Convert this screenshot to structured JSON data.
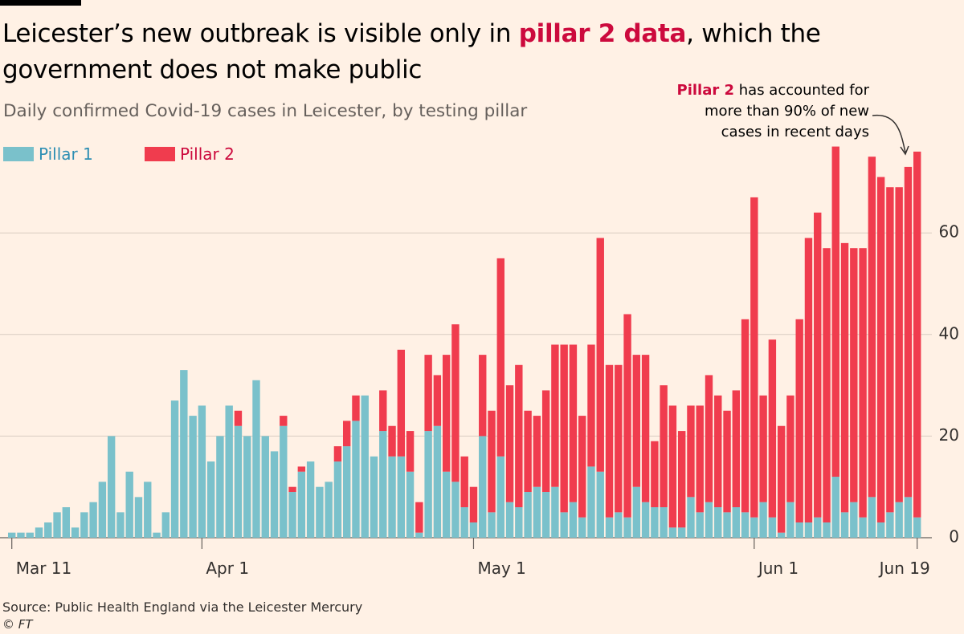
{
  "title": {
    "part1": "Leicester’s new outbreak is visible only in ",
    "highlight": "pillar 2 data",
    "part2": ", which the government does not make public"
  },
  "subtitle": "Daily confirmed Covid-19 cases in Leicester, by testing pillar",
  "annotation": {
    "highlight": "Pillar 2",
    "line1": " has accounted for",
    "line2": "more than 90% of new",
    "line3": "cases in recent days"
  },
  "source": "Source: Public Health England via the Leicester Mercury",
  "copyright": "© FT",
  "colors": {
    "pillar1": "#7AC1CB",
    "pillar2": "#F03C4E",
    "background": "#FFF1E5",
    "grid": "#D9CCC1",
    "highlight": "#CC0A3D"
  },
  "chart_data": {
    "type": "bar",
    "stacked": true,
    "title": "Leicester’s new outbreak is visible only in pillar 2 data, which the government does not make public",
    "xlabel": "",
    "ylabel": "",
    "ylim": [
      0,
      76
    ],
    "yticks": [
      0,
      20,
      40,
      60
    ],
    "grid": true,
    "legend_position": "top-left",
    "x_ticks": [
      {
        "label": "Mar 11",
        "index": 0
      },
      {
        "label": "Apr 1",
        "index": 21
      },
      {
        "label": "May 1",
        "index": 51
      },
      {
        "label": "Jun 1",
        "index": 82
      },
      {
        "label": "Jun 19",
        "index": 100
      }
    ],
    "series": [
      {
        "name": "Pillar 1",
        "color": "#7AC1CB",
        "values": [
          1,
          1,
          1,
          2,
          3,
          5,
          6,
          2,
          5,
          7,
          11,
          20,
          5,
          13,
          8,
          11,
          1,
          5,
          27,
          33,
          24,
          26,
          15,
          20,
          26,
          22,
          20,
          31,
          20,
          17,
          22,
          9,
          13,
          15,
          10,
          11,
          15,
          18,
          23,
          28,
          16,
          21,
          16,
          16,
          13,
          1,
          21,
          22,
          13,
          11,
          6,
          3,
          20,
          5,
          16,
          7,
          6,
          9,
          10,
          9,
          10,
          5,
          7,
          4,
          14,
          13,
          4,
          5,
          4,
          10,
          7,
          6,
          6,
          2,
          2,
          8,
          5,
          7,
          6,
          5,
          6,
          5,
          4,
          7,
          4,
          1,
          7,
          3,
          3,
          4,
          3,
          12,
          5,
          7,
          4,
          8,
          3,
          5,
          7,
          8,
          4
        ]
      },
      {
        "name": "Pillar 2",
        "color": "#F03C4E",
        "values": [
          0,
          0,
          0,
          0,
          0,
          0,
          0,
          0,
          0,
          0,
          0,
          0,
          0,
          0,
          0,
          0,
          0,
          0,
          0,
          0,
          0,
          0,
          0,
          0,
          0,
          3,
          0,
          0,
          0,
          0,
          2,
          1,
          1,
          0,
          0,
          0,
          3,
          5,
          5,
          0,
          0,
          8,
          6,
          21,
          8,
          6,
          15,
          10,
          23,
          31,
          10,
          7,
          16,
          20,
          39,
          23,
          28,
          16,
          14,
          20,
          28,
          33,
          31,
          20,
          24,
          46,
          30,
          29,
          40,
          26,
          29,
          13,
          24,
          24,
          19,
          18,
          21,
          25,
          22,
          20,
          23,
          38,
          63,
          21,
          35,
          21,
          21,
          40,
          56,
          60,
          54,
          65,
          53,
          50,
          53,
          67,
          68,
          64,
          62,
          65,
          72
        ]
      }
    ],
    "categories_count": 101
  }
}
